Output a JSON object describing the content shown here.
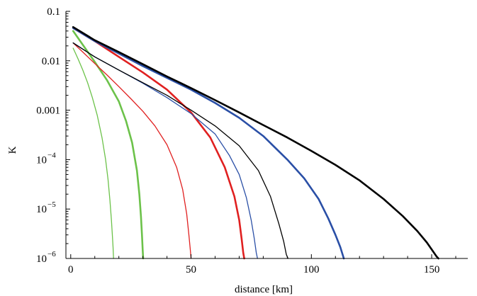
{
  "chart_data": {
    "type": "line",
    "title": "",
    "xlabel": "distance [km]",
    "ylabel": "K",
    "xlim": [
      -2,
      165
    ],
    "ylim": [
      1e-06,
      0.1
    ],
    "yscale": "log",
    "grid": false,
    "x_ticks": [
      0,
      50,
      100,
      150
    ],
    "x_tick_labels": [
      "0",
      "50",
      "100",
      "150"
    ],
    "y_ticks": [
      0.1,
      0.01,
      0.001,
      0.0001,
      1e-05,
      1e-06
    ],
    "y_tick_labels": [
      {
        "base": "0.1",
        "exp": ""
      },
      {
        "base": "0.01",
        "exp": ""
      },
      {
        "base": "0.001",
        "exp": ""
      },
      {
        "base": "10",
        "exp": "−4"
      },
      {
        "base": "10",
        "exp": "−5"
      },
      {
        "base": "10",
        "exp": "−6"
      }
    ],
    "series": [
      {
        "color": "#6cc24a",
        "width": 1.3,
        "x": [
          1,
          3,
          5,
          7,
          9,
          11,
          13,
          14.5,
          15.5,
          16.3,
          16.9,
          17.3,
          17.6,
          17.8
        ],
        "y": [
          0.018,
          0.011,
          0.0065,
          0.0036,
          0.0018,
          0.0008,
          0.00028,
          0.0001,
          4e-05,
          1.5e-05,
          6e-06,
          3e-06,
          1.7e-06,
          1e-06
        ]
      },
      {
        "color": "#6cc24a",
        "width": 2.6,
        "x": [
          1,
          5,
          10,
          15,
          20,
          23,
          25.5,
          27.5,
          28.5,
          29.2,
          29.6,
          29.9,
          30.1
        ],
        "y": [
          0.04,
          0.021,
          0.0095,
          0.0041,
          0.0015,
          0.0006,
          0.00022,
          6e-05,
          2e-05,
          7e-06,
          3e-06,
          1.5e-06,
          1e-06
        ]
      },
      {
        "color": "#e02020",
        "width": 1.3,
        "x": [
          1,
          5,
          10,
          15,
          20,
          25,
          30,
          35,
          40,
          44,
          46.5,
          48.2,
          49.1,
          49.7,
          50
        ],
        "y": [
          0.023,
          0.015,
          0.0088,
          0.0052,
          0.003,
          0.0017,
          0.00095,
          0.00048,
          0.0002,
          7e-05,
          2.5e-05,
          8e-06,
          3e-06,
          1.5e-06,
          1e-06
        ]
      },
      {
        "color": "#e02020",
        "width": 2.6,
        "x": [
          1,
          10,
          20,
          30,
          40,
          50,
          58,
          64,
          68,
          70,
          71,
          71.7,
          72.1
        ],
        "y": [
          0.046,
          0.025,
          0.012,
          0.0058,
          0.0026,
          0.0009,
          0.00028,
          7e-05,
          1.8e-05,
          6e-06,
          2.5e-06,
          1.3e-06,
          1e-06
        ]
      },
      {
        "color": "#2a4fa6",
        "width": 1.3,
        "x": [
          1,
          10,
          20,
          30,
          40,
          50,
          60,
          66,
          70,
          73,
          75,
          76.3,
          77.1,
          77.6
        ],
        "y": [
          0.023,
          0.012,
          0.0065,
          0.0035,
          0.0018,
          0.00085,
          0.00033,
          0.00012,
          5e-05,
          1.7e-05,
          6e-06,
          2.5e-06,
          1.3e-06,
          1e-06
        ]
      },
      {
        "color": "#000000",
        "width": 1.3,
        "x": [
          1,
          10,
          20,
          30,
          40,
          50,
          60,
          70,
          78,
          83,
          86.5,
          88.5,
          89.6,
          90.3
        ],
        "y": [
          0.023,
          0.012,
          0.0065,
          0.0036,
          0.002,
          0.001,
          0.00048,
          0.00019,
          6e-05,
          1.8e-05,
          5e-06,
          2.2e-06,
          1.2e-06,
          1e-06
        ]
      },
      {
        "color": "#2a4fa6",
        "width": 2.6,
        "x": [
          1,
          10,
          20,
          30,
          40,
          50,
          60,
          70,
          80,
          90,
          97,
          103,
          107,
          110,
          112,
          113,
          113.5
        ],
        "y": [
          0.046,
          0.025,
          0.014,
          0.0078,
          0.0045,
          0.0026,
          0.0014,
          0.0007,
          0.0003,
          0.0001,
          4.2e-05,
          1.6e-05,
          6.5e-06,
          3e-06,
          1.7e-06,
          1.2e-06,
          1e-06
        ]
      },
      {
        "color": "#000000",
        "width": 2.6,
        "x": [
          1,
          10,
          20,
          30,
          40,
          50,
          60,
          70,
          80,
          90,
          100,
          110,
          120,
          130,
          138,
          144,
          148,
          150.5,
          152,
          152.8
        ],
        "y": [
          0.048,
          0.026,
          0.015,
          0.0085,
          0.0048,
          0.0028,
          0.0016,
          0.0009,
          0.0005,
          0.00028,
          0.00015,
          7.8e-05,
          3.8e-05,
          1.6e-05,
          7.2e-06,
          3.6e-06,
          2.1e-06,
          1.4e-06,
          1.1e-06,
          1e-06
        ]
      }
    ]
  }
}
